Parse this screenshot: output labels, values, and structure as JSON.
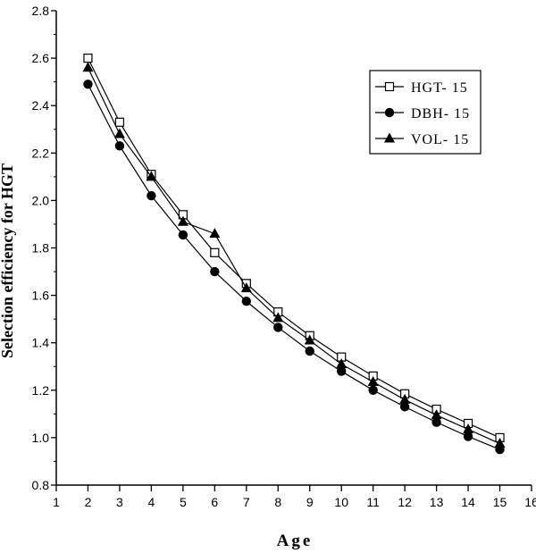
{
  "chart_data": {
    "type": "line",
    "title": "",
    "xlabel": "Age",
    "ylabel": "Selection efficiency for HGT",
    "xlim": [
      1,
      16
    ],
    "ylim": [
      0.8,
      2.8
    ],
    "x_ticks": [
      1,
      2,
      3,
      4,
      5,
      6,
      7,
      8,
      9,
      10,
      11,
      12,
      13,
      14,
      15,
      16
    ],
    "y_ticks": [
      "0.8",
      "1.0",
      "1.2",
      "1.4",
      "1.6",
      "1.8",
      "2.0",
      "2.2",
      "2.4",
      "2.6",
      "2.8"
    ],
    "grid": false,
    "legend_position": "top-right",
    "x": [
      2,
      3,
      4,
      5,
      6,
      7,
      8,
      9,
      10,
      11,
      12,
      13,
      14,
      15
    ],
    "series": [
      {
        "name": "HGT- 15",
        "marker": "open-square",
        "values": [
          2.6,
          2.33,
          2.11,
          1.94,
          1.78,
          1.65,
          1.53,
          1.43,
          1.34,
          1.26,
          1.185,
          1.12,
          1.06,
          1.0
        ]
      },
      {
        "name": "DBH- 15",
        "marker": "filled-circle",
        "values": [
          2.49,
          2.23,
          2.02,
          1.855,
          1.7,
          1.575,
          1.465,
          1.365,
          1.28,
          1.2,
          1.13,
          1.065,
          1.005,
          0.95
        ]
      },
      {
        "name": "VOL- 15",
        "marker": "filled-triangle",
        "values": [
          2.56,
          2.28,
          2.1,
          1.91,
          1.86,
          1.63,
          1.505,
          1.41,
          1.31,
          1.235,
          1.16,
          1.095,
          1.035,
          0.975
        ]
      }
    ]
  },
  "colors": {
    "line": "#000000",
    "background": "#ffffff"
  }
}
